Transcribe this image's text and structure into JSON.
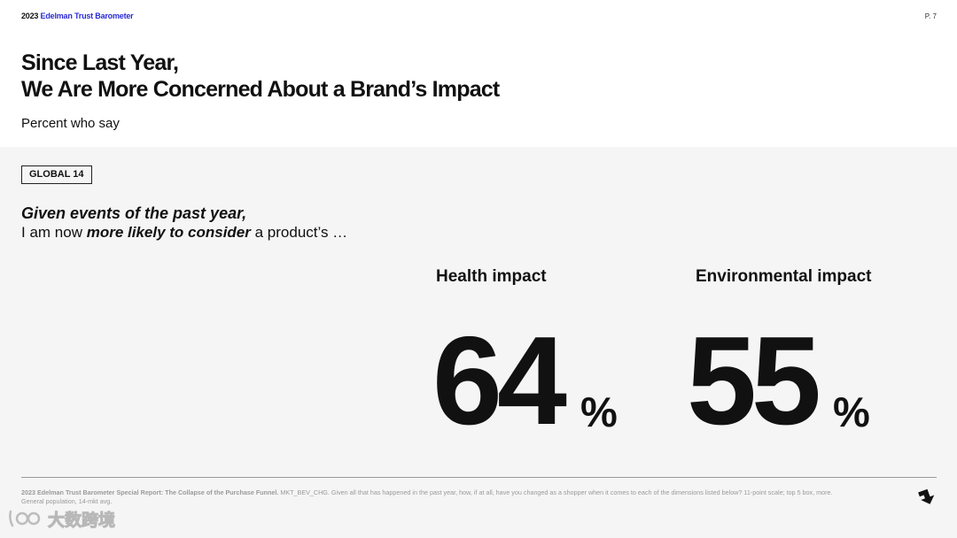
{
  "header": {
    "brand_year": "2023",
    "brand_name": "Edelman Trust Barometer",
    "page_number": "P. 7",
    "title_line1": "Since Last Year,",
    "title_line2": "We Are More Concerned About a Brand’s Impact",
    "subtitle": "Percent who say"
  },
  "body": {
    "badge": "GLOBAL 14",
    "question_line1": "Given events of the past year,",
    "question_line2_pre": "I am now ",
    "question_line2_emph": "more likely to consider",
    "question_line2_post": " a product’s …",
    "stats": [
      {
        "label": "Health impact",
        "value": "64",
        "unit": "%"
      },
      {
        "label": "Environmental impact",
        "value": "55",
        "unit": "%"
      }
    ]
  },
  "footer": {
    "source_bold": "2023 Edelman Trust Barometer Special Report: The Collapse of the Purchase Funnel.",
    "source_rest": " MKT_BEV_CHG. Given all that has happened in the past year, how, if at all, have you changed as a shopper when it comes to each of the dimensions listed below? 11-point scale; top 5 box, more. General population, 14-mkt avg.",
    "next_icon": "arrow-down-right-icon"
  },
  "watermark": {
    "text": "大数跨境"
  },
  "colors": {
    "brand_blue": "#2b2bd6",
    "panel_bg": "#f5f5f5",
    "text": "#111111",
    "muted": "#9a9a9a"
  }
}
